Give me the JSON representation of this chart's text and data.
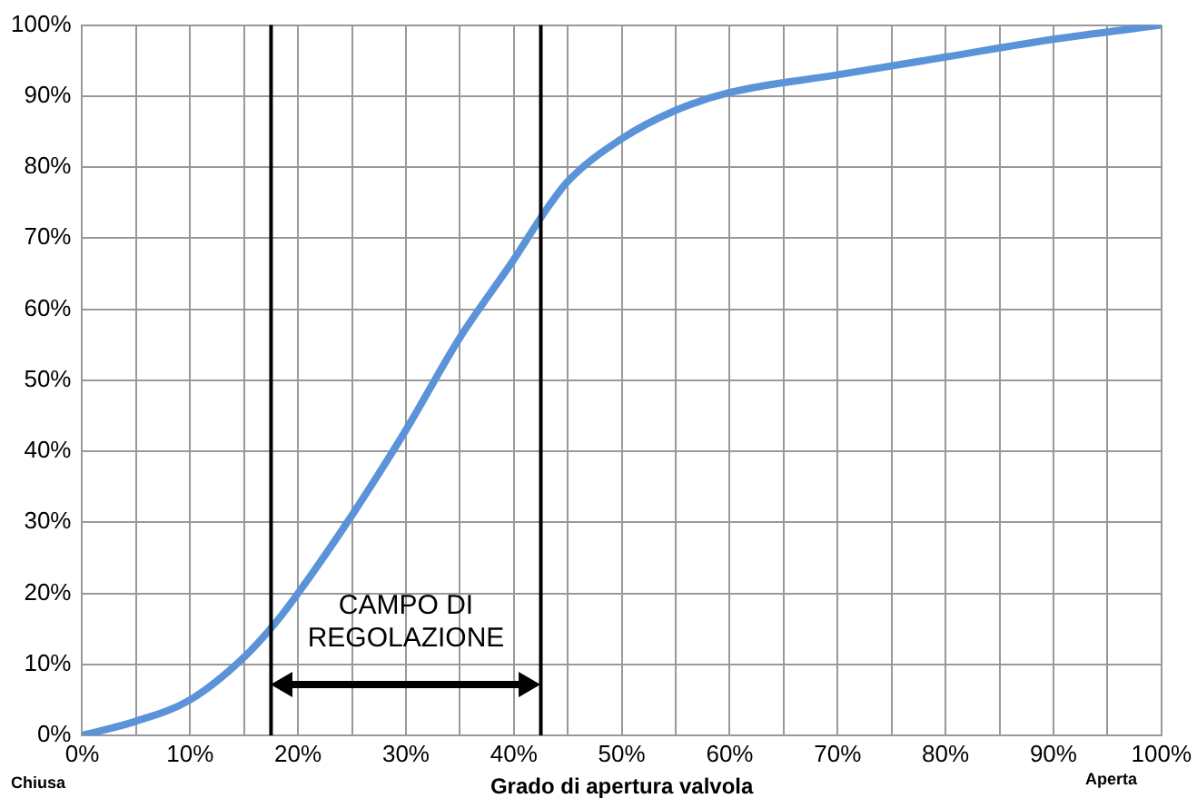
{
  "chart_data": {
    "type": "line",
    "xlabel": "Grado di apertura valvola",
    "x": [
      0,
      5,
      10,
      15,
      18,
      20,
      25,
      30,
      35,
      40,
      43,
      45,
      50,
      55,
      60,
      70,
      80,
      90,
      100
    ],
    "series": [
      {
        "color": "#5b93d8",
        "values": [
          0,
          2,
          5,
          11,
          16,
          20,
          31,
          43,
          56,
          67,
          74,
          78,
          84,
          88,
          90.5,
          93,
          95.5,
          98,
          100
        ]
      }
    ],
    "xlim": [
      0,
      100
    ],
    "xticks": [
      {
        "value": 0,
        "label": "0%"
      },
      {
        "value": 5,
        "label": null
      },
      {
        "value": 10,
        "label": "10%"
      },
      {
        "value": 15,
        "label": null
      },
      {
        "value": 20,
        "label": "20%"
      },
      {
        "value": 25,
        "label": null
      },
      {
        "value": 30,
        "label": "30%"
      },
      {
        "value": 35,
        "label": null
      },
      {
        "value": 40,
        "label": "40%"
      },
      {
        "value": 45,
        "label": null
      },
      {
        "value": 50,
        "label": "50%"
      },
      {
        "value": 55,
        "label": null
      },
      {
        "value": 60,
        "label": "60%"
      },
      {
        "value": 65,
        "label": null
      },
      {
        "value": 70,
        "label": "70%"
      },
      {
        "value": 75,
        "label": null
      },
      {
        "value": 80,
        "label": "80%"
      },
      {
        "value": 85,
        "label": null
      },
      {
        "value": 90,
        "label": "90%"
      },
      {
        "value": 95,
        "label": null
      },
      {
        "value": 100,
        "label": "100%"
      }
    ],
    "ylim": [
      0,
      100
    ],
    "yticks": [
      {
        "value": 0,
        "label": "0%"
      },
      {
        "value": 10,
        "label": "10%"
      },
      {
        "value": 20,
        "label": "20%"
      },
      {
        "value": 30,
        "label": "30%"
      },
      {
        "value": 40,
        "label": "40%"
      },
      {
        "value": 50,
        "label": "50%"
      },
      {
        "value": 60,
        "label": "60%"
      },
      {
        "value": 70,
        "label": "70%"
      },
      {
        "value": 80,
        "label": "80%"
      },
      {
        "value": 90,
        "label": "90%"
      },
      {
        "value": 100,
        "label": "100%"
      }
    ],
    "ref_lines": [
      {
        "axis": "x",
        "value": 17.5,
        "color": "#000000"
      },
      {
        "axis": "x",
        "value": 42.5,
        "color": "#000000"
      }
    ],
    "annotations": [
      "CAMPO DI\nREGOLAZIONE",
      "Chiusa",
      "Aperta"
    ],
    "grid": true,
    "legend": false,
    "marker": "none",
    "line_style": "solid"
  }
}
